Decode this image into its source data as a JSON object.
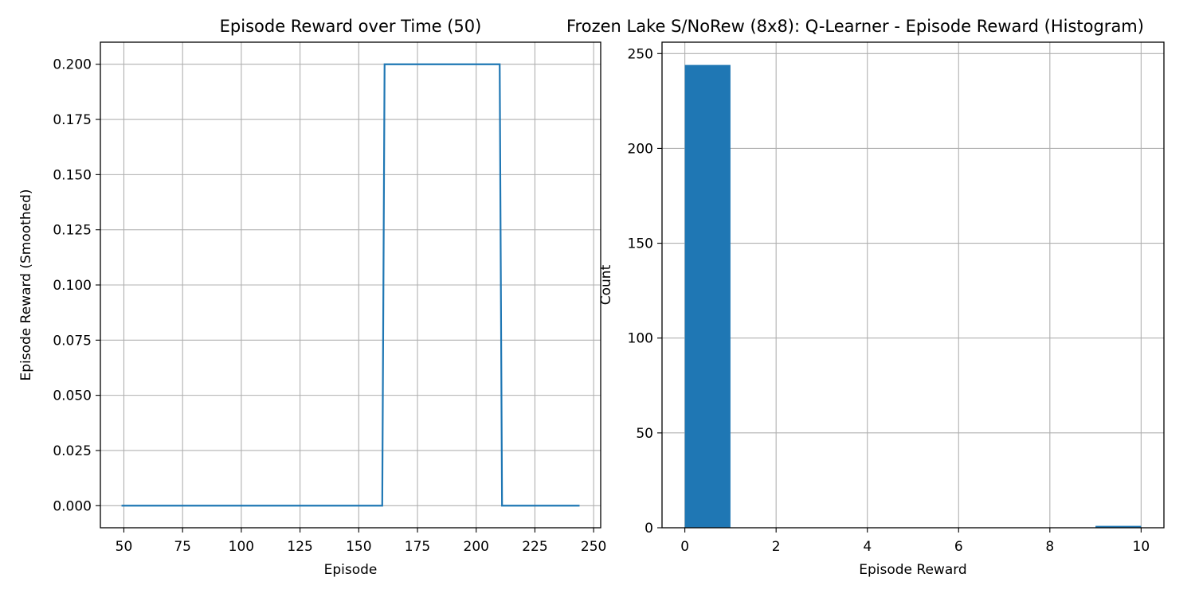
{
  "chart_data": [
    {
      "type": "line",
      "title": "Episode Reward over Time (50)",
      "xlabel": "Episode",
      "ylabel": "Episode Reward (Smoothed)",
      "xlim": [
        40,
        253
      ],
      "ylim": [
        -0.01,
        0.21
      ],
      "xticks": [
        50,
        75,
        100,
        125,
        150,
        175,
        200,
        225,
        250
      ],
      "xtick_labels": [
        "50",
        "75",
        "100",
        "125",
        "150",
        "175",
        "200",
        "225",
        "250"
      ],
      "yticks": [
        0,
        0.025,
        0.05,
        0.075,
        0.1,
        0.125,
        0.15,
        0.175,
        0.2
      ],
      "ytick_labels": [
        "0.000",
        "0.025",
        "0.050",
        "0.075",
        "0.100",
        "0.125",
        "0.150",
        "0.175",
        "0.200"
      ],
      "grid": true,
      "color": "#1f77b4",
      "series": [
        {
          "x": [
            49,
            160,
            161,
            210,
            211,
            244
          ],
          "y": [
            0,
            0,
            0.2,
            0.2,
            0,
            0
          ]
        }
      ]
    },
    {
      "type": "bar",
      "subtype": "histogram",
      "title": "Frozen Lake S/NoRew (8x8): Q-Learner - Episode Reward (Histogram)",
      "xlabel": "Episode Reward",
      "ylabel": "Count",
      "xlim": [
        -0.5,
        10.5
      ],
      "ylim": [
        0,
        256
      ],
      "xticks": [
        0,
        2,
        4,
        6,
        8,
        10
      ],
      "xtick_labels": [
        "0",
        "2",
        "4",
        "6",
        "8",
        "10"
      ],
      "yticks": [
        0,
        50,
        100,
        150,
        200,
        250
      ],
      "ytick_labels": [
        "0",
        "50",
        "100",
        "150",
        "200",
        "250"
      ],
      "grid": true,
      "color": "#1f77b4",
      "bin_edges": [
        0,
        1,
        2,
        3,
        4,
        5,
        6,
        7,
        8,
        9,
        10
      ],
      "values": [
        244,
        0,
        0,
        0,
        0,
        0,
        0,
        0,
        0,
        1
      ]
    }
  ]
}
